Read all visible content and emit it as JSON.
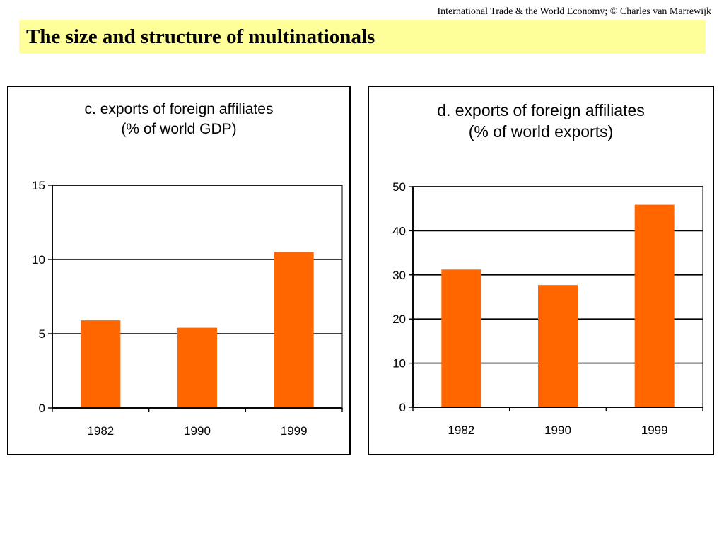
{
  "header": {
    "credit": "International Trade & the World Economy;  © Charles van Marrewijk",
    "title": "The size and structure of multinationals"
  },
  "colors": {
    "title_bg": "#ffff99",
    "bar": "#ff6600",
    "grid": "#000000",
    "frame": "#808080"
  },
  "chart_data": [
    {
      "type": "bar",
      "title_line1": "c. exports of foreign affiliates",
      "title_line2": "(% of world GDP)",
      "categories": [
        "1982",
        "1990",
        "1999"
      ],
      "values": [
        5.9,
        5.4,
        10.5
      ],
      "ylim": [
        0,
        15
      ],
      "yticks": [
        0,
        5,
        10,
        15
      ],
      "grid": true,
      "xlabel": "",
      "ylabel": ""
    },
    {
      "type": "bar",
      "title_line1": "d. exports of foreign affiliates",
      "title_line2": "(% of world exports)",
      "categories": [
        "1982",
        "1990",
        "1999"
      ],
      "values": [
        31.2,
        27.7,
        45.9
      ],
      "ylim": [
        0,
        50
      ],
      "yticks": [
        0,
        10,
        20,
        30,
        40,
        50
      ],
      "grid": true,
      "xlabel": "",
      "ylabel": ""
    }
  ]
}
